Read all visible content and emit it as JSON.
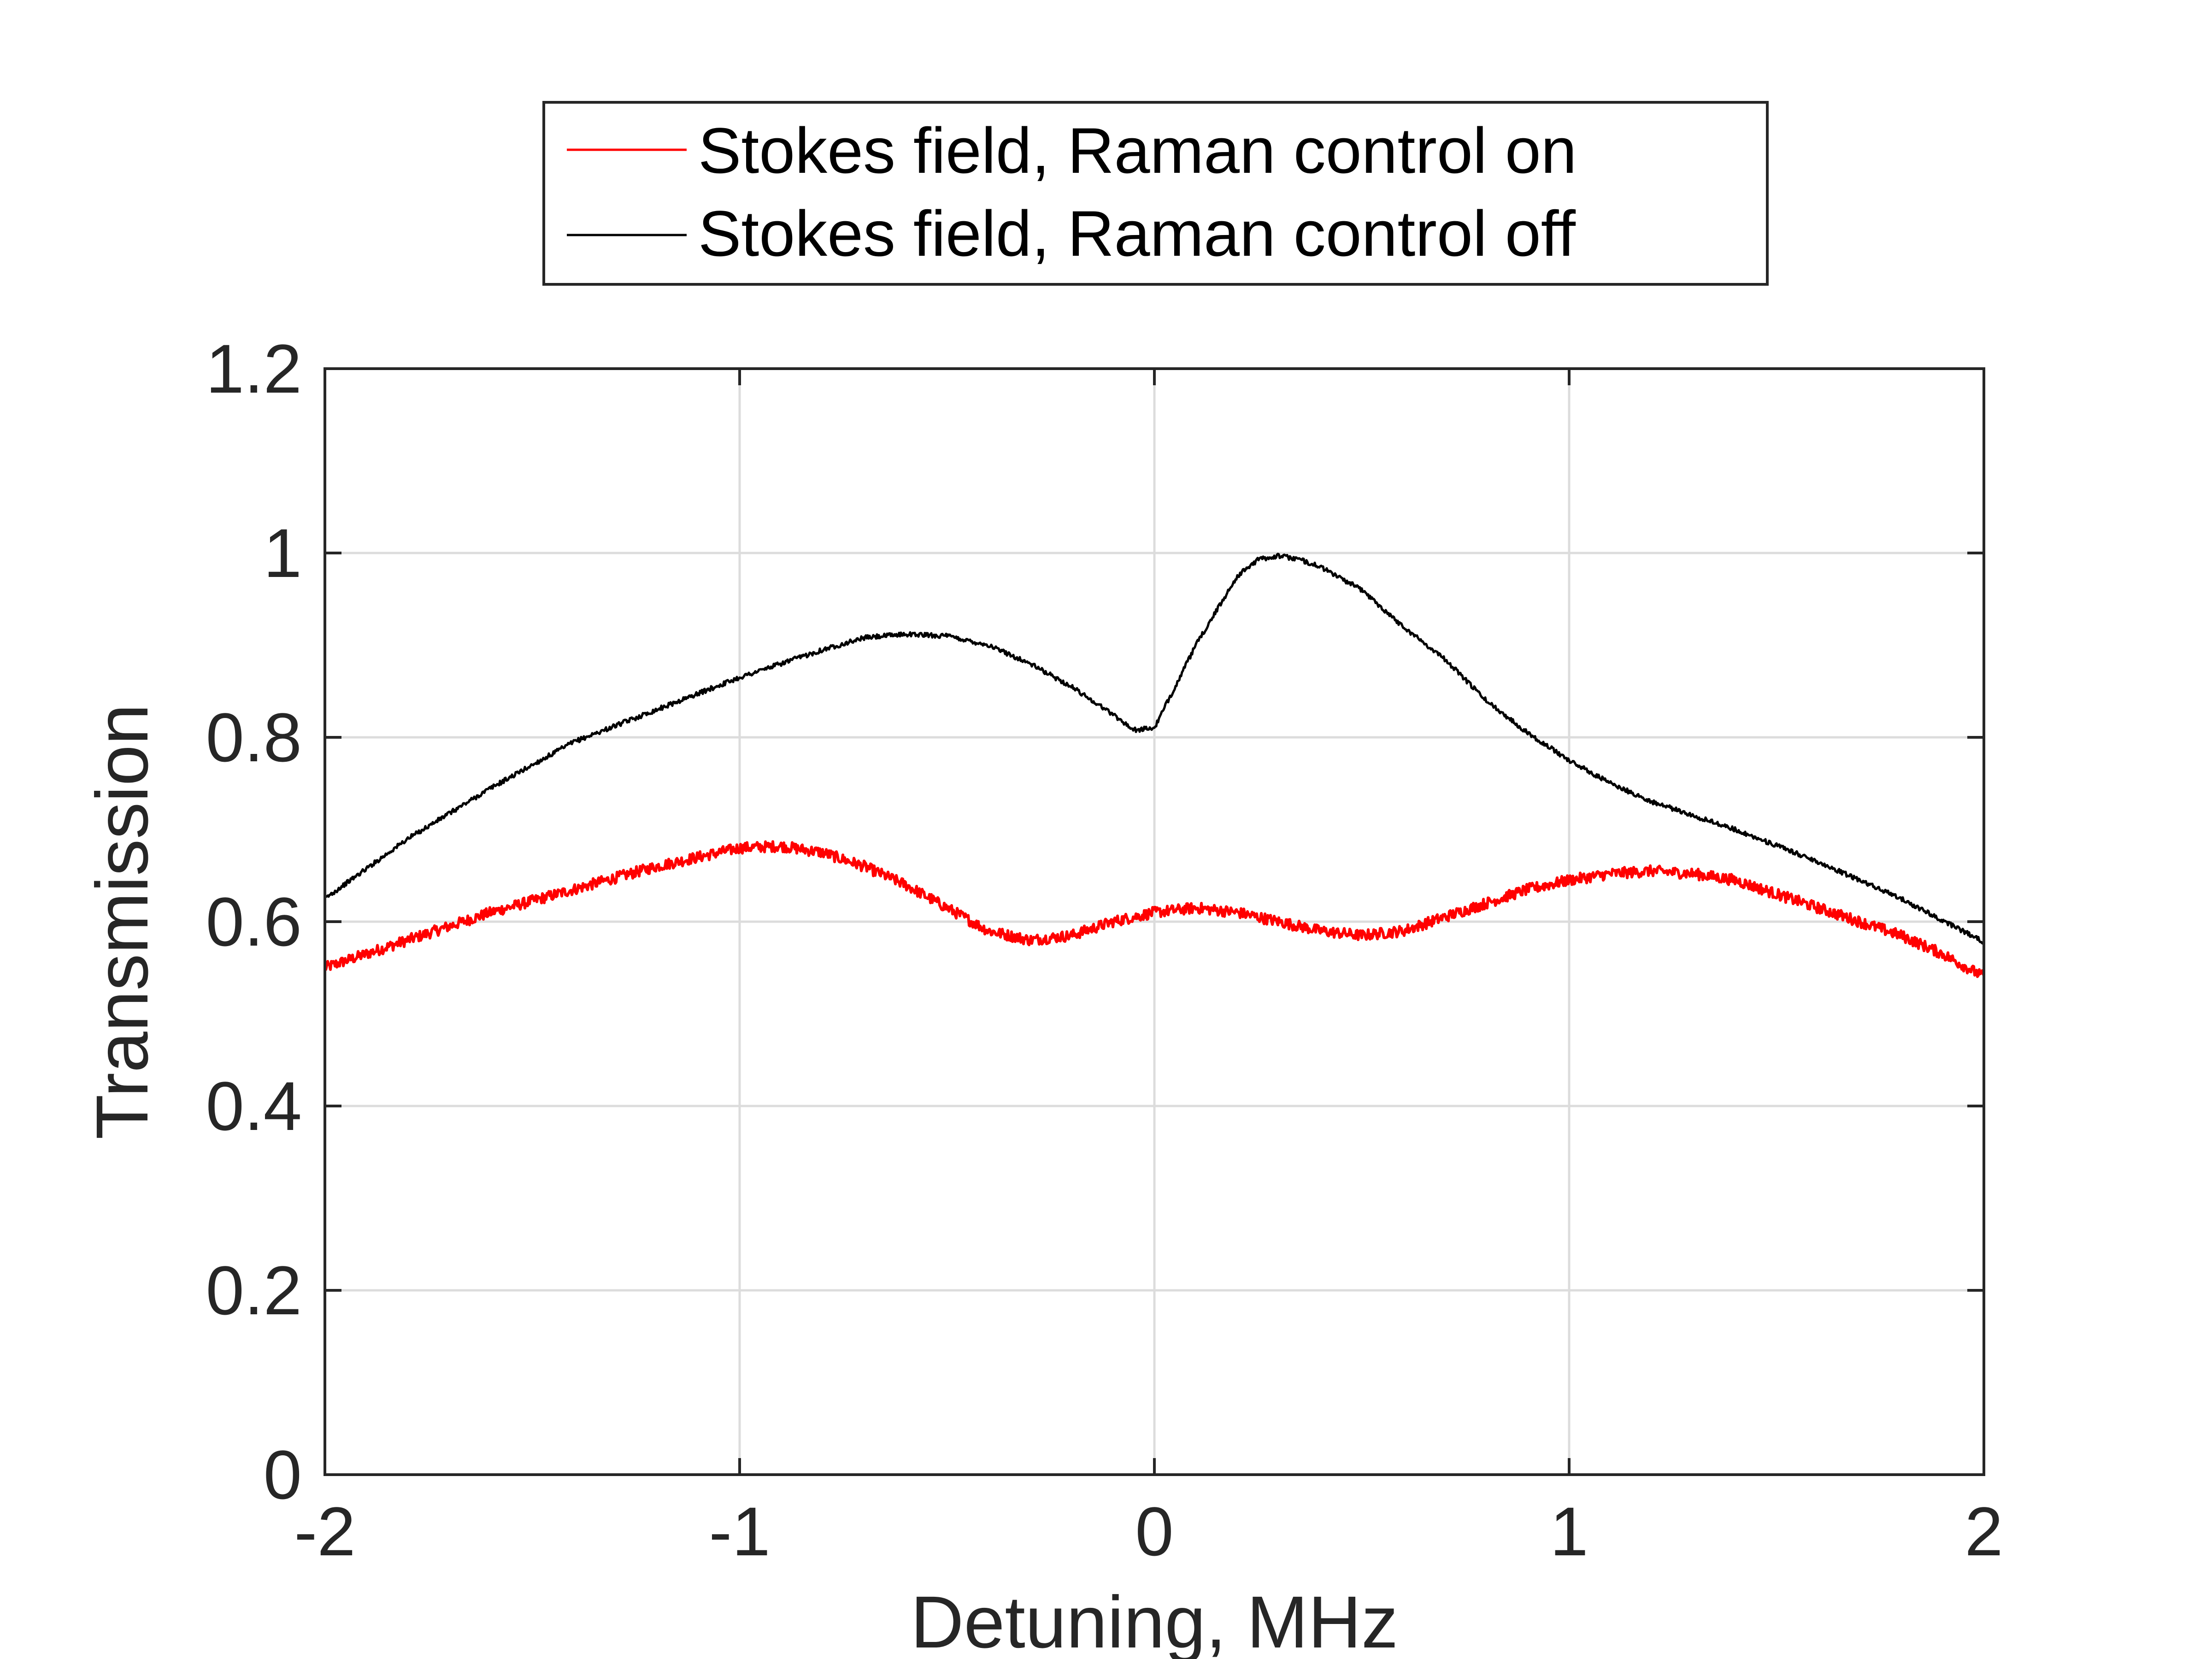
{
  "chart_data": {
    "type": "line",
    "title": "",
    "xlabel": "Detuning, MHz",
    "ylabel": "Transmission",
    "xlim": [
      -2,
      2
    ],
    "ylim": [
      0,
      1.2
    ],
    "xticks": [
      -2,
      -1,
      0,
      1,
      2
    ],
    "xtick_labels": [
      "-2",
      "-1",
      "0",
      "1",
      "2"
    ],
    "yticks": [
      0,
      0.2,
      0.4,
      0.6,
      0.8,
      1.0,
      1.2
    ],
    "ytick_labels": [
      "0",
      "0.2",
      "0.4",
      "0.6",
      "0.8",
      "1",
      "1.2"
    ],
    "grid": true,
    "legend_position": "top-center (outside, above plot)",
    "series": [
      {
        "name": "Stokes field, Raman control on",
        "color": "#ff0000",
        "noise": 0.006,
        "x": [
          -2.0,
          -1.8,
          -1.6,
          -1.4,
          -1.2,
          -1.0,
          -0.9,
          -0.8,
          -0.7,
          -0.6,
          -0.5,
          -0.4,
          -0.3,
          -0.2,
          -0.1,
          0.0,
          0.1,
          0.2,
          0.3,
          0.4,
          0.5,
          0.6,
          0.7,
          0.8,
          0.9,
          1.0,
          1.1,
          1.2,
          1.3,
          1.4,
          1.5,
          1.6,
          1.7,
          1.8,
          1.9,
          2.0
        ],
        "y": [
          0.55,
          0.58,
          0.61,
          0.635,
          0.66,
          0.68,
          0.682,
          0.675,
          0.66,
          0.64,
          0.615,
          0.59,
          0.58,
          0.585,
          0.6,
          0.61,
          0.615,
          0.61,
          0.6,
          0.59,
          0.585,
          0.59,
          0.605,
          0.62,
          0.635,
          0.645,
          0.652,
          0.655,
          0.652,
          0.645,
          0.63,
          0.615,
          0.6,
          0.585,
          0.565,
          0.54
        ]
      },
      {
        "name": "Stokes field, Raman control off",
        "color": "#000000",
        "noise": 0.0025,
        "x": [
          -2.0,
          -1.8,
          -1.6,
          -1.4,
          -1.2,
          -1.0,
          -0.8,
          -0.7,
          -0.6,
          -0.5,
          -0.4,
          -0.3,
          -0.2,
          -0.1,
          -0.05,
          0.0,
          0.1,
          0.2,
          0.25,
          0.3,
          0.35,
          0.4,
          0.5,
          0.6,
          0.7,
          0.8,
          0.9,
          1.0,
          1.1,
          1.2,
          1.4,
          1.6,
          1.8,
          2.0
        ],
        "y": [
          0.625,
          0.69,
          0.745,
          0.795,
          0.83,
          0.865,
          0.895,
          0.908,
          0.912,
          0.91,
          0.9,
          0.88,
          0.855,
          0.825,
          0.808,
          0.81,
          0.9,
          0.975,
          0.993,
          0.997,
          0.993,
          0.985,
          0.96,
          0.92,
          0.885,
          0.84,
          0.805,
          0.775,
          0.75,
          0.73,
          0.7,
          0.665,
          0.625,
          0.578
        ]
      }
    ]
  }
}
